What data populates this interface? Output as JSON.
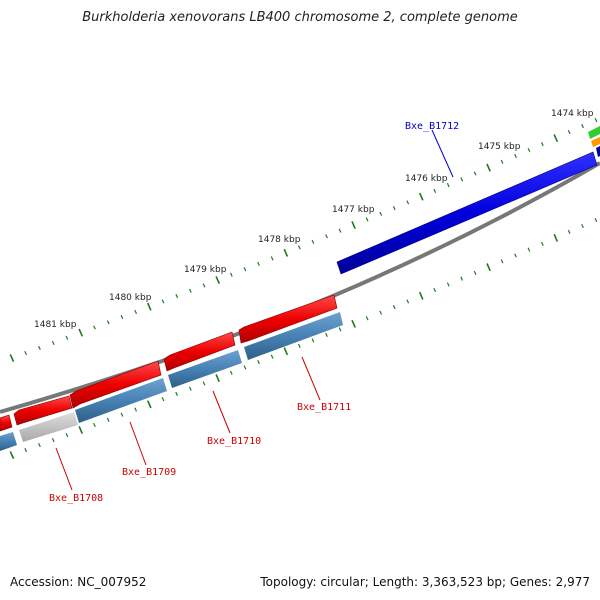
{
  "header": {
    "title": "Burkholderia xenovorans LB400 chromosome 2, complete genome"
  },
  "footer": {
    "accession": "Accession: NC_007952",
    "topology": "Topology: circular; Length: 3,363,523 bp; Genes: 2,977"
  },
  "scale": {
    "tick_labels": [
      "1474 kbp",
      "1475 kbp",
      "1476 kbp",
      "1477 kbp",
      "1478 kbp",
      "1479 kbp",
      "1480 kbp",
      "1481 kbp"
    ]
  },
  "genes": [
    {
      "id": "Bxe_B1712",
      "color": "#0000cc",
      "strand": "forward"
    },
    {
      "id": "Bxe_B1711",
      "color": "#cc0000",
      "strand": "reverse"
    },
    {
      "id": "Bxe_B1710",
      "color": "#cc0000",
      "strand": "reverse"
    },
    {
      "id": "Bxe_B1709",
      "color": "#cc0000",
      "strand": "reverse"
    },
    {
      "id": "Bxe_B1708",
      "color": "#cc0000",
      "strand": "reverse"
    }
  ],
  "colors": {
    "forward_gene": "#0000dd",
    "reverse_gene": "#ee0000",
    "cds_track": "#4682b4",
    "pseudo_track": "#c0c0c0",
    "backbone": "#777777",
    "tick": "#1e7a1e",
    "other_gene_green": "#33cc33",
    "other_gene_orange": "#ff9900"
  }
}
